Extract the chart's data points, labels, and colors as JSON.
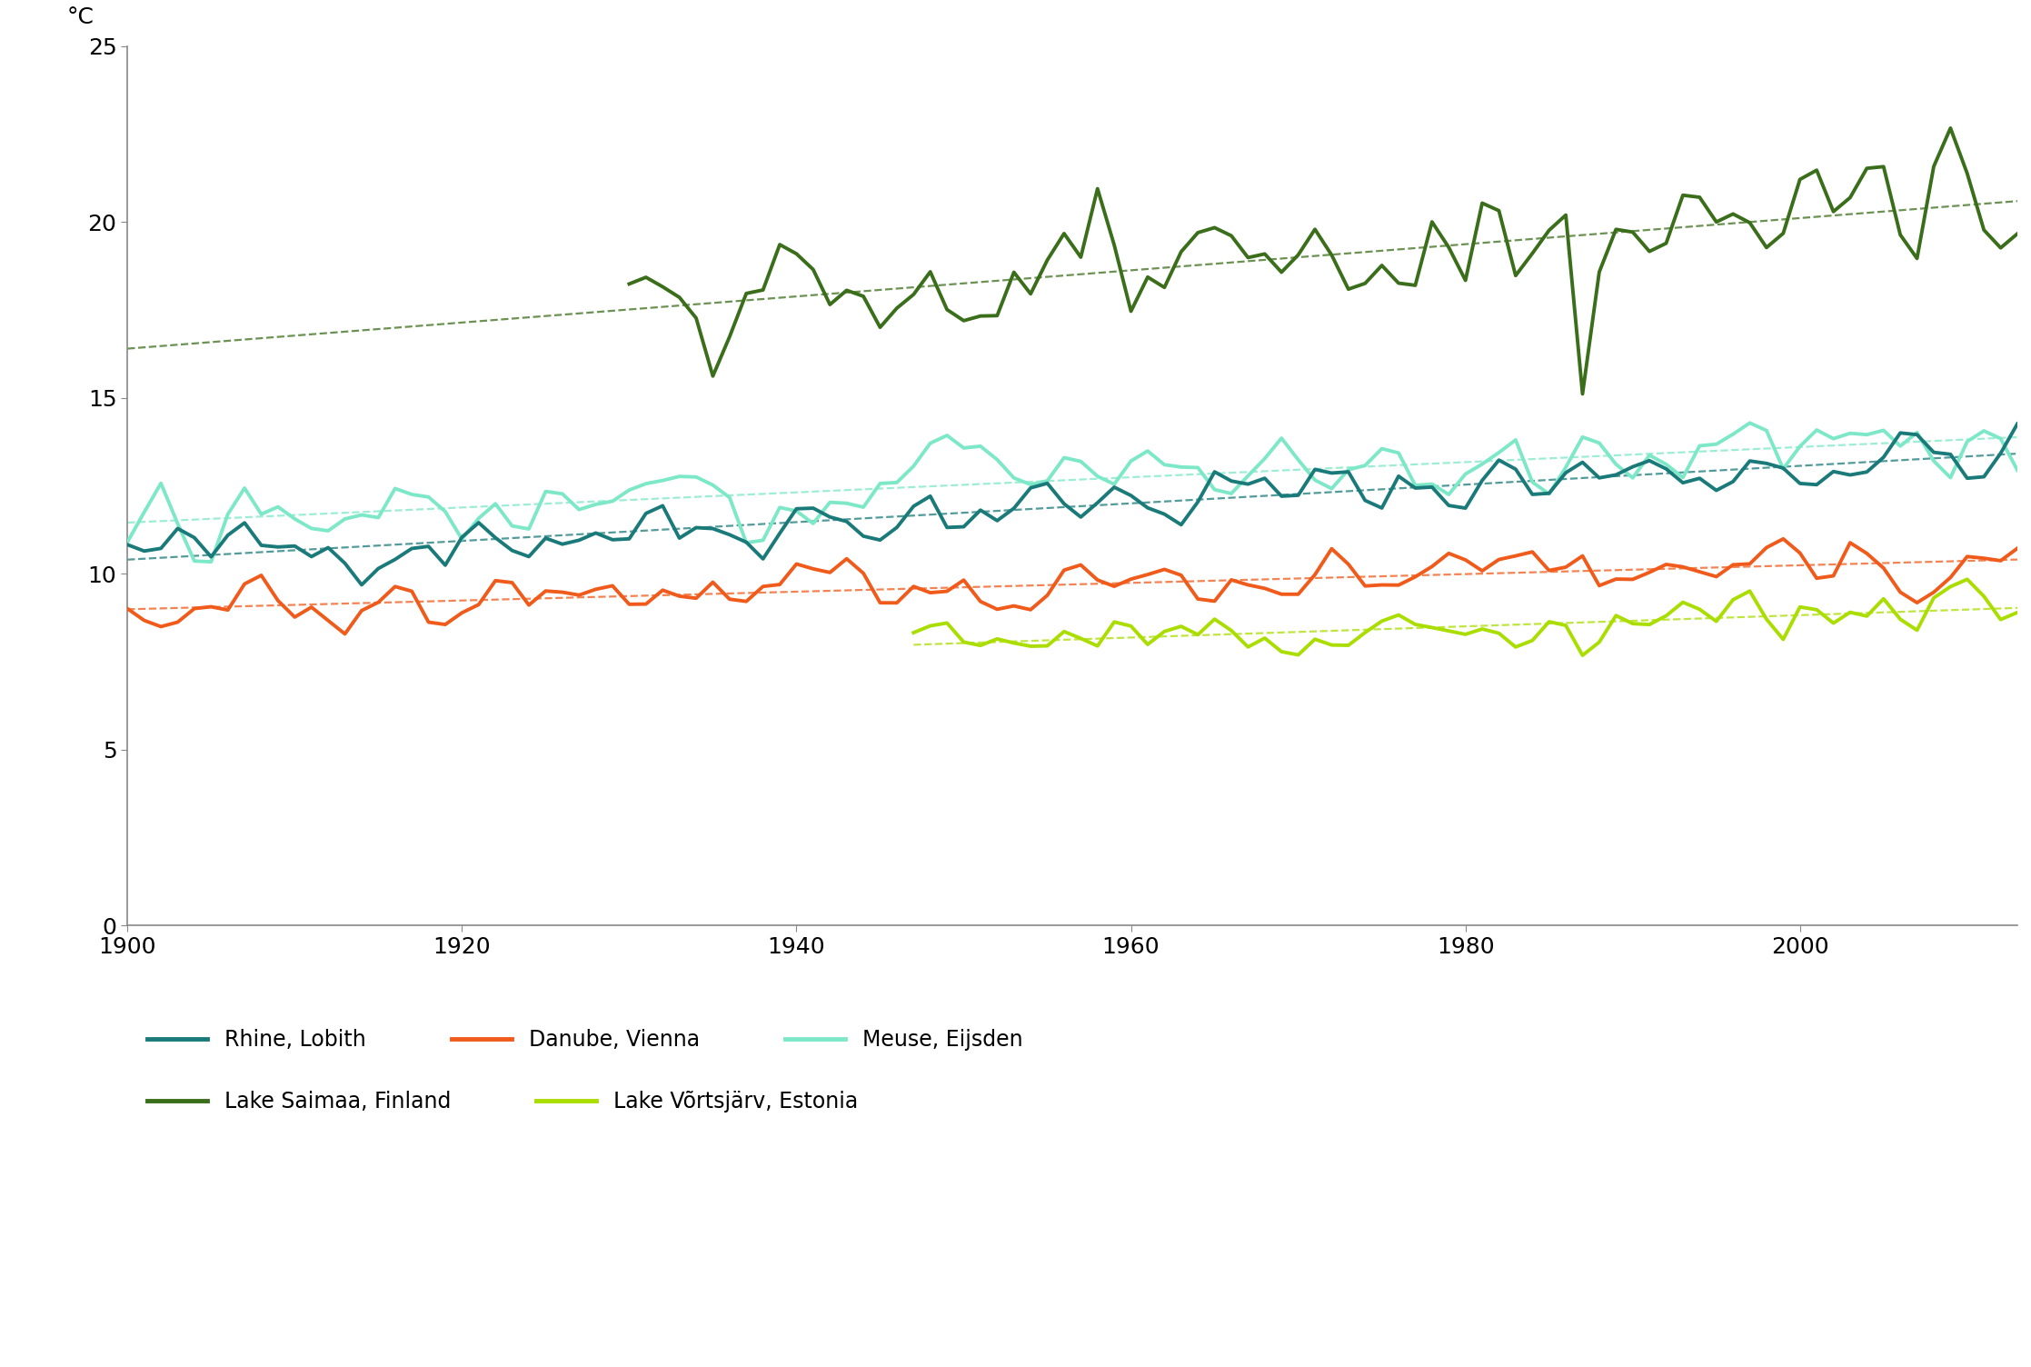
{
  "ylabel": "°C",
  "xlim": [
    1900,
    2013
  ],
  "ylim": [
    0,
    25
  ],
  "yticks": [
    0,
    5,
    10,
    15,
    20,
    25
  ],
  "xticks": [
    1900,
    1920,
    1940,
    1960,
    1980,
    2000
  ],
  "colors": {
    "rhine": "#1a7a7a",
    "danube": "#f05a1a",
    "meuse": "#7de8c8",
    "saimaa": "#3a6e1a",
    "vorts": "#aadd00"
  },
  "labels": {
    "rhine": "Rhine, Lobith",
    "danube": "Danube, Vienna",
    "meuse": "Meuse, Eijsden",
    "saimaa": "Lake Saimaa, Finland",
    "vorts": "Lake Võrtsjärv, Estonia"
  },
  "series_params": {
    "rhine": {
      "start": 1900,
      "end": 2013,
      "base": 10.5,
      "slope": 0.026,
      "amp": 0.65,
      "seed": 42
    },
    "danube": {
      "start": 1900,
      "end": 2013,
      "base": 8.85,
      "slope": 0.015,
      "amp": 0.6,
      "seed": 43
    },
    "meuse": {
      "start": 1900,
      "end": 2013,
      "base": 11.5,
      "slope": 0.022,
      "amp": 0.8,
      "seed": 44
    },
    "saimaa": {
      "start": 1930,
      "end": 2013,
      "base": 18.2,
      "slope": 0.025,
      "amp": 1.4,
      "seed": 45,
      "dip_year": 1987,
      "dip_val": -4.0
    },
    "vorts": {
      "start": 1947,
      "end": 2013,
      "base": 8.0,
      "slope": 0.016,
      "amp": 0.55,
      "seed": 46
    }
  },
  "trend_ext": {
    "rhine": {
      "ext_start": 1900
    },
    "danube": {
      "ext_start": 1900
    },
    "meuse": {
      "ext_start": 1900
    },
    "saimaa": {
      "ext_start": 1900
    },
    "vorts": {
      "ext_start": 1947
    }
  },
  "linewidth": 2.8,
  "trend_linewidth": 1.6,
  "trend_alpha": 0.75,
  "spine_color": "#888888",
  "tick_labelsize": 18,
  "legend_fontsize": 17
}
